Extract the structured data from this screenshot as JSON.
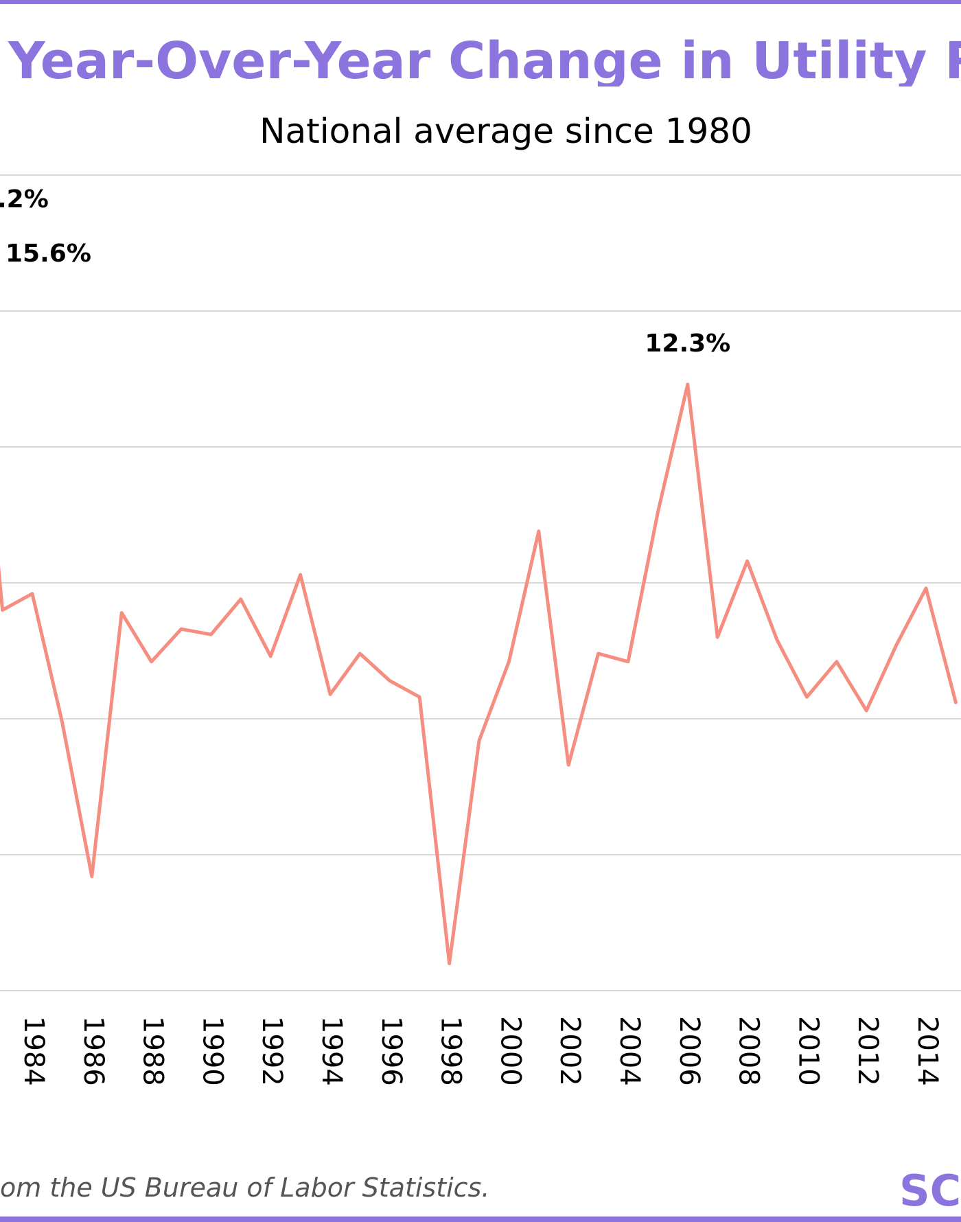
{
  "colors": {
    "accent": "#8b74dd",
    "line": "#f58e80",
    "grid": "#d9d9d9",
    "label": "#000000",
    "source": "#555555"
  },
  "header": {
    "title": "Year-Over-Year Change in Utility Rate",
    "subtitle": "National average since 1980"
  },
  "footer": {
    "source": "om the US Bureau of Labor Statistics.",
    "logo": "SC"
  },
  "chart_data": {
    "type": "line",
    "title": "Year-Over-Year Change in Utility Rate",
    "subtitle": "National average since 1980",
    "xlabel": "",
    "ylabel": "",
    "grid": true,
    "ylim": [
      -10,
      20
    ],
    "xlim": [
      1982.9,
      2015.2
    ],
    "x_ticks": [
      1984,
      1986,
      1988,
      1990,
      1992,
      1994,
      1996,
      1998,
      2000,
      2002,
      2004,
      2006,
      2008,
      2010,
      2012,
      2014
    ],
    "series": [
      {
        "values": [
          {
            "x": 1982,
            "y": 15.6
          },
          {
            "x": 1983,
            "y": 4.0
          },
          {
            "x": 1984,
            "y": 4.6
          },
          {
            "x": 1985,
            "y": -0.1
          },
          {
            "x": 1986,
            "y": -5.8
          },
          {
            "x": 1987,
            "y": 3.9
          },
          {
            "x": 1988,
            "y": 2.1
          },
          {
            "x": 1989,
            "y": 3.3
          },
          {
            "x": 1990,
            "y": 3.1
          },
          {
            "x": 1991,
            "y": 4.4
          },
          {
            "x": 1992,
            "y": 2.3
          },
          {
            "x": 1993,
            "y": 5.3
          },
          {
            "x": 1994,
            "y": 0.9
          },
          {
            "x": 1995,
            "y": 2.4
          },
          {
            "x": 1996,
            "y": 1.4
          },
          {
            "x": 1997,
            "y": 0.8
          },
          {
            "x": 1998,
            "y": -9.0
          },
          {
            "x": 1999,
            "y": -0.8
          },
          {
            "x": 2000,
            "y": 2.1
          },
          {
            "x": 2001,
            "y": 6.9
          },
          {
            "x": 2002,
            "y": -1.7
          },
          {
            "x": 2003,
            "y": 2.4
          },
          {
            "x": 2004,
            "y": 2.1
          },
          {
            "x": 2005,
            "y": 7.6
          },
          {
            "x": 2006,
            "y": 12.3
          },
          {
            "x": 2007,
            "y": 3.0
          },
          {
            "x": 2008,
            "y": 5.8
          },
          {
            "x": 2009,
            "y": 2.9
          },
          {
            "x": 2010,
            "y": 0.8
          },
          {
            "x": 2011,
            "y": 2.1
          },
          {
            "x": 2012,
            "y": 0.3
          },
          {
            "x": 2013,
            "y": 2.7
          },
          {
            "x": 2014,
            "y": 4.8
          },
          {
            "x": 2015,
            "y": 0.6
          }
        ]
      }
    ],
    "annotations": [
      {
        "text": "15.6%",
        "x": 1982,
        "y": 15.6
      },
      {
        "text": "12.3%",
        "x": 2006,
        "y": 12.3
      }
    ],
    "partial_annotation": {
      "text": ".2%"
    }
  }
}
